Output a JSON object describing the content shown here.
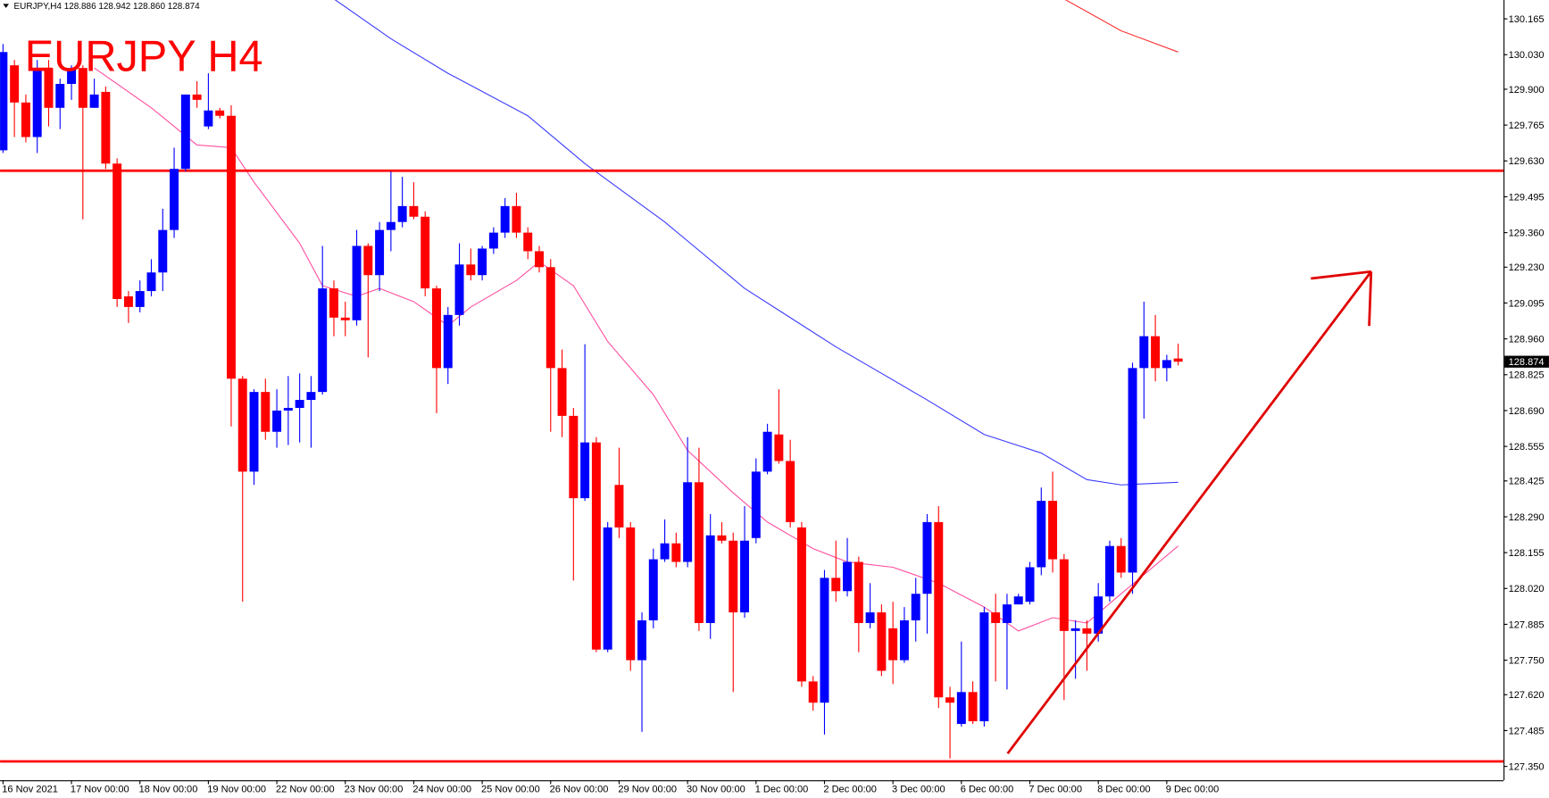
{
  "chart_data": {
    "type": "candlestick",
    "header": "EURJPY,H4  128.886 128.942 128.860 128.874",
    "title": "EURJPY H4",
    "up_color": "#0000ff",
    "down_color": "#ff0000",
    "categories": [
      "16 Nov 2021",
      null,
      null,
      null,
      null,
      null,
      "17 Nov 00:00",
      null,
      null,
      null,
      null,
      null,
      "18 Nov 00:00",
      null,
      null,
      null,
      null,
      null,
      "19 Nov 00:00",
      null,
      null,
      null,
      null,
      null,
      "22 Nov 00:00",
      null,
      null,
      null,
      null,
      null,
      "23 Nov 00:00",
      null,
      null,
      null,
      null,
      null,
      "24 Nov 00:00",
      null,
      null,
      null,
      null,
      null,
      "25 Nov 00:00",
      null,
      null,
      null,
      null,
      null,
      "26 Nov 00:00",
      null,
      null,
      null,
      null,
      null,
      "29 Nov 00:00",
      null,
      null,
      null,
      null,
      null,
      "30 Nov 00:00",
      null,
      null,
      null,
      null,
      null,
      "1 Dec 00:00",
      null,
      null,
      null,
      null,
      null,
      "2 Dec 00:00",
      null,
      null,
      null,
      null,
      null,
      "3 Dec 00:00",
      null,
      null,
      null,
      null,
      null,
      "6 Dec 00:00",
      null,
      null,
      null,
      null,
      null,
      "7 Dec 00:00",
      null,
      null,
      null,
      null,
      null,
      "8 Dec 00:00",
      null,
      null,
      null,
      null,
      null,
      "9 Dec 00:00",
      null
    ],
    "open": [
      129.67,
      129.99,
      129.85,
      129.72,
      129.98,
      129.83,
      129.92,
      129.98,
      129.83,
      129.89,
      129.62,
      129.12,
      129.08,
      129.14,
      129.21,
      129.37,
      129.6,
      129.88,
      129.76,
      129.82,
      129.8,
      128.81,
      128.46,
      128.76,
      128.61,
      128.69,
      128.7,
      128.73,
      128.76,
      129.15,
      129.04,
      129.03,
      129.31,
      129.2,
      129.37,
      129.4,
      129.46,
      129.42,
      129.15,
      128.85,
      129.05,
      129.24,
      129.2,
      129.3,
      129.36,
      129.46,
      129.36,
      129.29,
      129.23,
      128.85,
      128.67,
      128.36,
      128.57,
      127.79,
      128.41,
      128.25,
      127.75,
      127.9,
      128.13,
      128.19,
      128.12,
      128.42,
      127.89,
      128.22,
      128.2,
      127.93,
      128.21,
      128.46,
      128.6,
      128.5,
      128.25,
      127.67,
      127.59,
      128.06,
      128.01,
      128.12,
      127.89,
      127.93,
      127.87,
      127.75,
      127.9,
      128.0,
      128.27,
      127.61,
      127.51,
      127.63,
      127.52,
      127.93,
      127.89,
      127.96,
      127.97,
      128.1,
      128.35,
      128.13,
      127.86,
      127.87,
      127.85,
      127.99,
      128.18,
      128.08,
      128.85,
      128.97,
      128.85,
      128.886
    ],
    "high": [
      130.07,
      130.01,
      129.88,
      130.01,
      130.01,
      129.94,
      129.99,
      129.99,
      129.94,
      129.91,
      129.64,
      129.14,
      129.18,
      129.26,
      129.45,
      129.68,
      129.88,
      129.93,
      129.96,
      129.83,
      129.84,
      128.82,
      128.77,
      128.81,
      128.77,
      128.82,
      128.83,
      128.82,
      129.31,
      129.18,
      129.1,
      129.37,
      129.32,
      129.4,
      129.59,
      129.57,
      129.55,
      129.44,
      129.16,
      129.08,
      129.32,
      129.3,
      129.31,
      129.38,
      129.49,
      129.51,
      129.38,
      129.31,
      129.26,
      128.92,
      128.7,
      128.94,
      128.59,
      128.27,
      128.55,
      128.27,
      127.93,
      128.17,
      128.28,
      128.23,
      128.59,
      128.55,
      128.3,
      128.27,
      128.23,
      128.33,
      128.51,
      128.64,
      128.77,
      128.58,
      128.27,
      127.69,
      128.09,
      128.2,
      128.21,
      128.14,
      128.04,
      127.96,
      127.97,
      127.95,
      128.06,
      128.3,
      128.33,
      127.65,
      127.82,
      127.67,
      127.95,
      128.0,
      128.0,
      128.0,
      128.12,
      128.4,
      128.46,
      128.15,
      127.9,
      127.9,
      128.04,
      128.2,
      128.21,
      128.87,
      129.1,
      129.05,
      128.9,
      128.942
    ],
    "low": [
      129.66,
      129.72,
      129.7,
      129.66,
      129.76,
      129.75,
      129.86,
      129.41,
      129.83,
      129.6,
      129.08,
      129.02,
      129.06,
      129.12,
      129.14,
      129.34,
      129.59,
      129.83,
      129.75,
      129.79,
      128.63,
      127.97,
      128.41,
      128.58,
      128.55,
      128.56,
      128.57,
      128.55,
      128.75,
      128.97,
      128.97,
      129.01,
      128.89,
      129.14,
      129.29,
      129.38,
      129.41,
      129.12,
      128.68,
      128.79,
      129.01,
      129.18,
      129.18,
      129.28,
      129.34,
      129.34,
      129.26,
      129.21,
      128.61,
      128.59,
      128.05,
      128.35,
      127.78,
      127.78,
      128.21,
      127.71,
      127.48,
      127.87,
      128.12,
      128.1,
      128.1,
      127.86,
      127.83,
      128.19,
      127.63,
      127.91,
      128.19,
      128.45,
      128.49,
      128.25,
      127.65,
      127.56,
      127.47,
      127.97,
      127.99,
      127.78,
      127.87,
      127.69,
      127.66,
      127.74,
      127.82,
      127.85,
      127.57,
      127.38,
      127.5,
      127.51,
      127.5,
      127.67,
      127.64,
      127.96,
      127.96,
      128.07,
      128.08,
      127.6,
      127.68,
      127.71,
      127.82,
      127.97,
      128.06,
      128.0,
      128.66,
      128.8,
      128.8,
      128.86
    ],
    "close": [
      130.04,
      129.85,
      129.72,
      129.98,
      129.83,
      129.92,
      129.98,
      129.83,
      129.88,
      129.62,
      129.11,
      129.08,
      129.14,
      129.21,
      129.37,
      129.6,
      129.88,
      129.86,
      129.82,
      129.8,
      128.81,
      128.46,
      128.76,
      128.61,
      128.69,
      128.7,
      128.73,
      128.76,
      129.15,
      129.04,
      129.03,
      129.31,
      129.2,
      129.37,
      129.4,
      129.46,
      129.42,
      129.15,
      128.85,
      129.05,
      129.24,
      129.2,
      129.3,
      129.36,
      129.46,
      129.36,
      129.29,
      129.23,
      128.85,
      128.67,
      128.36,
      128.57,
      127.79,
      128.25,
      128.25,
      127.75,
      127.9,
      128.13,
      128.19,
      128.12,
      128.42,
      127.89,
      128.22,
      128.2,
      127.93,
      128.2,
      128.46,
      128.61,
      128.5,
      128.27,
      127.67,
      127.59,
      128.06,
      128.01,
      128.12,
      127.89,
      127.93,
      127.71,
      127.75,
      127.9,
      128.0,
      128.27,
      127.61,
      127.59,
      127.63,
      127.52,
      127.93,
      127.89,
      127.96,
      127.99,
      128.1,
      128.35,
      128.13,
      127.86,
      127.87,
      127.85,
      127.99,
      128.18,
      128.08,
      128.85,
      128.97,
      128.85,
      128.88,
      128.874
    ],
    "overlays": [
      {
        "color": "#3b3bff",
        "x": [
          29,
          34,
          39,
          46,
          51,
          58,
          65,
          73,
          81,
          86,
          91,
          95,
          98,
          103
        ],
        "values": [
          130.24,
          130.09,
          129.96,
          129.8,
          129.62,
          129.4,
          129.15,
          128.93,
          128.73,
          128.6,
          128.53,
          128.43,
          128.41,
          128.42
        ]
      },
      {
        "color": "#ff4fa0",
        "x": [
          8,
          13,
          17,
          20,
          22,
          26,
          28,
          31,
          33,
          36,
          39,
          41,
          45,
          47,
          50,
          53,
          57,
          60,
          64,
          67,
          71,
          74,
          78,
          82,
          86,
          89,
          92,
          95,
          98,
          103
        ],
        "values": [
          129.98,
          129.83,
          129.69,
          129.68,
          129.55,
          129.32,
          129.16,
          129.12,
          129.15,
          129.1,
          129.01,
          129.08,
          129.18,
          129.25,
          129.16,
          128.95,
          128.75,
          128.54,
          128.38,
          128.27,
          128.17,
          128.12,
          128.1,
          128.04,
          127.95,
          127.86,
          127.91,
          127.89,
          128.0,
          128.18
        ]
      },
      {
        "color": "#ff3030",
        "x": [
          93,
          98,
          103
        ],
        "values": [
          130.24,
          130.12,
          130.04
        ]
      }
    ],
    "levels": [
      129.593,
      127.369
    ],
    "level_color": "#ff0000",
    "current_price": 128.874,
    "ylim": [
      127.298,
      130.236
    ],
    "yticks": [
      130.165,
      {
        "value": 130.03,
        "label": "130.030"
      },
      {
        "value": 129.9,
        "label": "129.900"
      },
      129.765,
      {
        "value": 129.63,
        "label": "129.630"
      },
      129.495,
      {
        "value": 129.36,
        "label": "129.360"
      },
      {
        "value": 129.23,
        "label": "129.230"
      },
      129.095,
      {
        "value": 128.96,
        "label": "128.960"
      },
      128.825,
      {
        "value": 128.69,
        "label": "128.690"
      },
      128.555,
      128.425,
      {
        "value": 128.29,
        "label": "128.290"
      },
      128.155,
      {
        "value": 128.02,
        "label": "128.020"
      },
      127.885,
      {
        "value": 127.75,
        "label": "127.750"
      },
      {
        "value": 127.62,
        "label": "127.620"
      },
      127.485,
      {
        "value": 127.35,
        "label": "127.350"
      }
    ]
  }
}
